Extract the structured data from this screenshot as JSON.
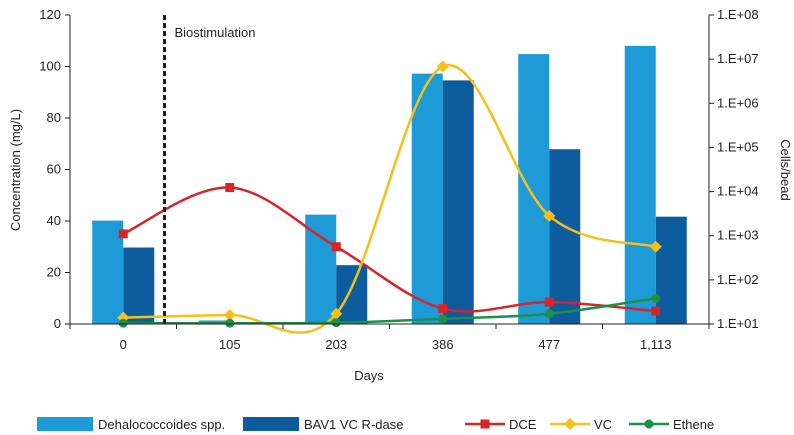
{
  "chart_data": {
    "type": "bar",
    "title": "",
    "xlabel": "Days",
    "ylabel": "Concentration (mg/L)",
    "y2label": "Cells/bead",
    "categories": [
      "0",
      "105",
      "203",
      "386",
      "477",
      "1,113"
    ],
    "ylim": [
      0,
      120
    ],
    "yticks": [
      "0",
      "20",
      "40",
      "60",
      "80",
      "100",
      "120"
    ],
    "y2_scale": "log",
    "y2lim": [
      10,
      100000000
    ],
    "y2ticks": [
      "1.E+01",
      "1.E+02",
      "1.E+03",
      "1.E+04",
      "1.E+05",
      "1.E+06",
      "1.E+07",
      "1.E+08"
    ],
    "annotation": {
      "label": "Biostimulation",
      "position": "between 0 and 105"
    },
    "bar_series": [
      {
        "name": "Dehalococcoides spp.",
        "axis": "right",
        "color": "#1e9ad6",
        "values": [
          2200,
          12,
          3000,
          4700000,
          13000000,
          20000000
        ]
      },
      {
        "name": "BAV1 VC R-dase",
        "axis": "right",
        "color": "#0d5c9e",
        "values": [
          540,
          null,
          215,
          3300000,
          91000,
          2700
        ]
      }
    ],
    "line_series": [
      {
        "name": "DCE",
        "axis": "left",
        "color": "#d6242b",
        "marker": "square",
        "values": [
          35,
          53,
          30,
          6,
          8.5,
          5
        ]
      },
      {
        "name": "VC",
        "axis": "left",
        "color": "#f5c01b",
        "marker": "diamond",
        "values": [
          2.5,
          3.5,
          4,
          100,
          42,
          30
        ]
      },
      {
        "name": "Ethene",
        "axis": "left",
        "color": "#1d9048",
        "marker": "circle",
        "values": [
          0.3,
          0.3,
          0.5,
          2,
          4,
          10
        ]
      }
    ],
    "legend_position": "bottom",
    "grid": false
  }
}
